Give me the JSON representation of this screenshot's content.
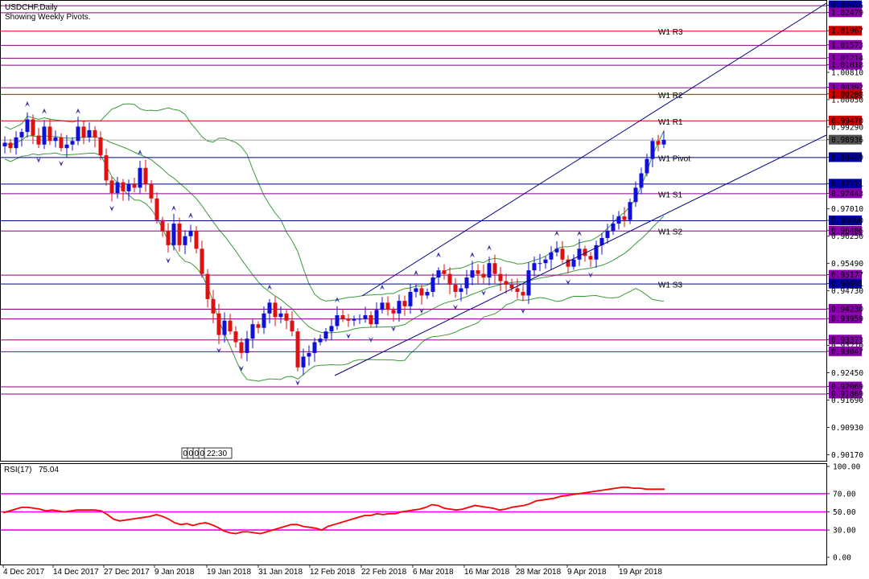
{
  "title": "USDCHF,Daily",
  "subtitle": "Showing Weekly Pivots.",
  "countdown": [
    "0",
    "0",
    "0",
    "0",
    "22:30"
  ],
  "colors": {
    "bull": "#1010d8",
    "bear": "#dd1111",
    "pivot_line": "#000080",
    "resistance_line": "#dd0000",
    "fib_line": "#880088",
    "support_line": "#000080",
    "channel": "#000080",
    "bands": "#3a9a3a",
    "rsi": "#ff0000",
    "rsi_levels": "#ff00ff",
    "fractal": "#3a3aa8",
    "blue_label": "#0000a0",
    "red_label": "#cc0000",
    "purple_label": "#8800aa",
    "gray_label": "#505050"
  },
  "chart_data": [
    {
      "type": "candlestick",
      "symbol": "USDCHF",
      "timeframe": "Daily",
      "ylim": [
        0.9,
        1.028
      ],
      "y_ticks": [
        "1.02675",
        "1.02479",
        "1.01967",
        "1.01573",
        "1.01214",
        "1.01018",
        "1.00810",
        "1.00392",
        "1.00208",
        "1.00050",
        "0.99470",
        "0.99290",
        "0.98936",
        "0.98449",
        "0.97711",
        "0.97443",
        "0.97010",
        "0.96690",
        "0.96406",
        "0.96250",
        "0.95490",
        "0.95177",
        "0.94931",
        "0.94730",
        "0.94230",
        "0.93959",
        "0.93373",
        "0.93210",
        "0.93047",
        "0.92450",
        "0.92069",
        "0.91869",
        "0.91690",
        "0.90930",
        "0.90170"
      ],
      "x_tick_labels": [
        "4 Dec 2017",
        "14 Dec 2017",
        "27 Dec 2017",
        "9 Jan 2018",
        "19 Jan 2018",
        "31 Jan 2018",
        "12 Feb 2018",
        "22 Feb 2018",
        "6 Mar 2018",
        "16 Mar 2018",
        "28 Mar 2018",
        "9 Apr 2018",
        "19 Apr 2018"
      ],
      "candles_close": [
        0.9885,
        0.987,
        0.99,
        0.9915,
        0.995,
        0.9905,
        0.988,
        0.993,
        0.989,
        0.99,
        0.987,
        0.988,
        0.989,
        0.993,
        0.99,
        0.992,
        0.99,
        0.985,
        0.978,
        0.9745,
        0.9775,
        0.975,
        0.977,
        0.976,
        0.9815,
        0.977,
        0.973,
        0.967,
        0.964,
        0.96,
        0.966,
        0.96,
        0.9625,
        0.964,
        0.959,
        0.952,
        0.945,
        0.941,
        0.935,
        0.939,
        0.936,
        0.933,
        0.93,
        0.934,
        0.938,
        0.937,
        0.941,
        0.944,
        0.94,
        0.941,
        0.939,
        0.936,
        0.926,
        0.929,
        0.93,
        0.933,
        0.934,
        0.936,
        0.9375,
        0.9405,
        0.9395,
        0.939,
        0.9395,
        0.9395,
        0.9405,
        0.938,
        0.942,
        0.944,
        0.942,
        0.941,
        0.9445,
        0.943,
        0.947,
        0.948,
        0.946,
        0.947,
        0.951,
        0.953,
        0.952,
        0.949,
        0.947,
        0.948,
        0.951,
        0.953,
        0.952,
        0.951,
        0.955,
        0.952,
        0.95,
        0.949,
        0.948,
        0.947,
        0.946,
        0.953,
        0.955,
        0.955,
        0.956,
        0.958,
        0.959,
        0.956,
        0.954,
        0.956,
        0.959,
        0.957,
        0.956,
        0.96,
        0.962,
        0.964,
        0.966,
        0.968,
        0.967,
        0.972,
        0.976,
        0.98,
        0.984,
        0.989,
        0.988,
        0.9893
      ]
    },
    {
      "type": "line",
      "name": "RSI(17)",
      "value_label": "75.04",
      "ylim": [
        0,
        100
      ],
      "levels": [
        70,
        50,
        30
      ],
      "y_ticks": [
        "100.00",
        "70.00",
        "50.00",
        "30.00",
        "0.00"
      ],
      "values": [
        49,
        51,
        53,
        55,
        55,
        54,
        53,
        51,
        52,
        51,
        50,
        51,
        52,
        52,
        52,
        52,
        51,
        47,
        42,
        40,
        41,
        42,
        43,
        44,
        45,
        47,
        45,
        42,
        38,
        36,
        37,
        35,
        37,
        38,
        36,
        33,
        29,
        27,
        26,
        28,
        28,
        27,
        26,
        28,
        30,
        32,
        34,
        36,
        36,
        34,
        33,
        32,
        30,
        34,
        36,
        38,
        40,
        42,
        44,
        46,
        46,
        48,
        47,
        48,
        48,
        50,
        51,
        52,
        53,
        55,
        58,
        57,
        54,
        53,
        52,
        53,
        55,
        57,
        56,
        55,
        54,
        52,
        53,
        55,
        56,
        57,
        59,
        62,
        63,
        64,
        65,
        67,
        68,
        69,
        70,
        71,
        72,
        73,
        74,
        75,
        76,
        77,
        77,
        76,
        76,
        75,
        75,
        75,
        75
      ]
    }
  ],
  "pivots": [
    {
      "label": "W1 R3",
      "price": "1.01967"
    },
    {
      "label": "W1 R2",
      "price": "1.00208"
    },
    {
      "label": "W1 R1",
      "price": "0.99470"
    },
    {
      "label": "W1 Pivot",
      "price": "0.98449"
    },
    {
      "label": "W1 S1",
      "price": "0.97443"
    },
    {
      "label": "W1 S2",
      "price": "0.96406"
    },
    {
      "label": "W1 S3",
      "price": "0.94931"
    }
  ]
}
